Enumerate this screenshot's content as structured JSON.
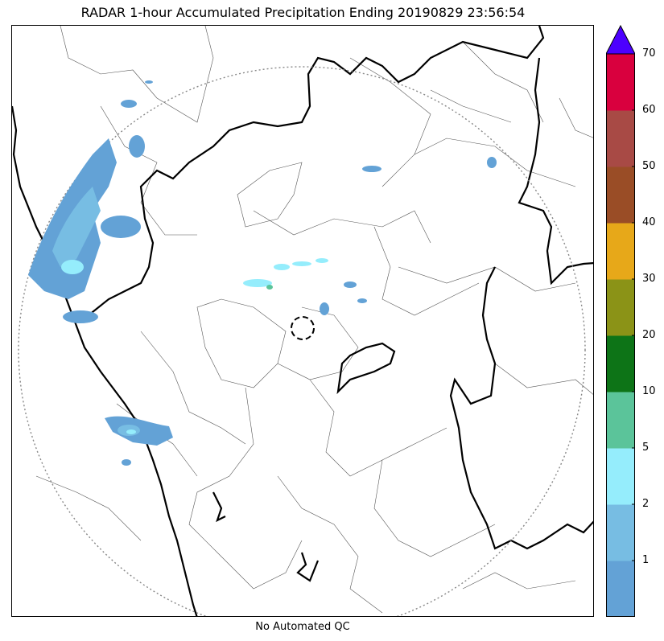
{
  "title": "RADAR 1-hour Accumulated Precipitation Ending 20190829 23:56:54",
  "footer": "No Automated QC",
  "colorbar": {
    "colors": [
      "#63a2d6",
      "#77bde3",
      "#95edfc",
      "#5bc49a",
      "#0d7417",
      "#8b9317",
      "#e7a819",
      "#9a4d26",
      "#a84a45",
      "#d9003e"
    ],
    "extend_color": "#4c00ff",
    "ticks": [
      "1",
      "2",
      "5",
      "10",
      "20",
      "30",
      "40",
      "50",
      "60",
      "70"
    ]
  }
}
